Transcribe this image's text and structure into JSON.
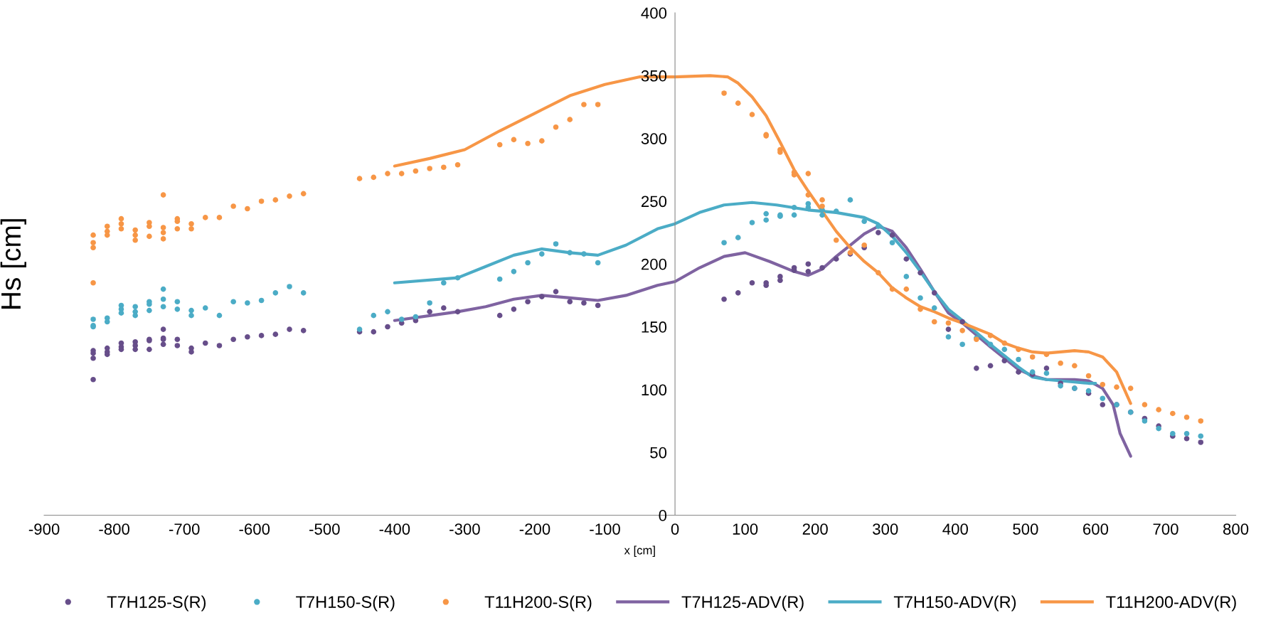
{
  "chart_data": {
    "type": "scatter",
    "xlabel": "x [cm]",
    "ylabel": "Hs [cm]",
    "xlim": [
      -900,
      800
    ],
    "xticks": [
      -900,
      -800,
      -700,
      -600,
      -500,
      -400,
      -300,
      -200,
      -100,
      0,
      100,
      200,
      300,
      400,
      500,
      600,
      700,
      800
    ],
    "ylim": [
      0,
      400
    ],
    "yticks": [
      0,
      50,
      100,
      150,
      200,
      250,
      300,
      350,
      400
    ],
    "grid": false,
    "legend": "bottom",
    "series": [
      {
        "name": "T7H125-S(R)",
        "type": "scatter",
        "marker": "circle",
        "color": "#674e8a",
        "x": [
          -830,
          -830,
          -830,
          -830,
          -810,
          -810,
          -810,
          -790,
          -790,
          -790,
          -770,
          -770,
          -770,
          -750,
          -750,
          -750,
          -730,
          -730,
          -730,
          -730,
          -710,
          -710,
          -690,
          -690,
          -670,
          -650,
          -630,
          -610,
          -590,
          -570,
          -550,
          -530,
          -450,
          -430,
          -410,
          -390,
          -370,
          -350,
          -330,
          -310,
          -250,
          -230,
          -210,
          -190,
          -170,
          -150,
          -130,
          -110,
          70,
          90,
          110,
          130,
          130,
          150,
          150,
          170,
          170,
          190,
          190,
          210,
          230,
          250,
          270,
          290,
          310,
          330,
          350,
          370,
          390,
          410,
          430,
          450,
          470,
          490,
          510,
          530,
          550,
          570,
          590,
          610,
          630,
          650,
          670,
          690,
          710,
          730,
          750
        ],
        "values": [
          131,
          129,
          125,
          108,
          133,
          130,
          128,
          137,
          134,
          132,
          138,
          135,
          132,
          140,
          139,
          132,
          148,
          141,
          140,
          136,
          140,
          135,
          133,
          130,
          137,
          135,
          140,
          142,
          143,
          144,
          148,
          147,
          146,
          146,
          150,
          153,
          155,
          162,
          165,
          162,
          159,
          164,
          170,
          174,
          178,
          170,
          169,
          167,
          172,
          177,
          185,
          185,
          183,
          190,
          187,
          197,
          195,
          200,
          194,
          197,
          204,
          208,
          213,
          225,
          223,
          204,
          193,
          177,
          148,
          154,
          117,
          119,
          123,
          114,
          112,
          117,
          105,
          101,
          97,
          88,
          88,
          82,
          77,
          71,
          63,
          61,
          58
        ]
      },
      {
        "name": "T7H150-S(R)",
        "type": "scatter",
        "marker": "circle",
        "color": "#4bacc6",
        "x": [
          -830,
          -830,
          -830,
          -810,
          -810,
          -790,
          -790,
          -790,
          -770,
          -770,
          -770,
          -750,
          -750,
          -750,
          -730,
          -730,
          -730,
          -710,
          -710,
          -690,
          -690,
          -670,
          -650,
          -630,
          -610,
          -590,
          -570,
          -550,
          -530,
          -450,
          -430,
          -410,
          -390,
          -370,
          -350,
          -330,
          -310,
          -250,
          -230,
          -210,
          -190,
          -170,
          -150,
          -130,
          -110,
          70,
          90,
          110,
          130,
          130,
          150,
          150,
          170,
          170,
          190,
          190,
          210,
          210,
          230,
          250,
          270,
          290,
          310,
          330,
          350,
          370,
          390,
          410,
          430,
          450,
          470,
          490,
          510,
          530,
          550,
          570,
          590,
          610,
          630,
          650,
          670,
          690,
          710,
          730,
          750
        ],
        "values": [
          156,
          151,
          150,
          157,
          154,
          167,
          164,
          161,
          166,
          162,
          159,
          170,
          168,
          163,
          180,
          172,
          166,
          170,
          164,
          163,
          159,
          165,
          159,
          170,
          169,
          171,
          177,
          182,
          177,
          148,
          159,
          162,
          156,
          158,
          169,
          185,
          189,
          188,
          194,
          201,
          208,
          216,
          209,
          208,
          201,
          217,
          221,
          233,
          240,
          235,
          239,
          238,
          245,
          239,
          248,
          245,
          243,
          239,
          242,
          251,
          234,
          230,
          217,
          190,
          173,
          165,
          142,
          136,
          141,
          136,
          132,
          124,
          114,
          113,
          103,
          101,
          99,
          93,
          88,
          82,
          75,
          69,
          65,
          65,
          63
        ]
      },
      {
        "name": "T11H200-S(R)",
        "type": "scatter",
        "marker": "circle",
        "color": "#f79646",
        "x": [
          -830,
          -830,
          -830,
          -830,
          -810,
          -810,
          -810,
          -790,
          -790,
          -790,
          -770,
          -770,
          -770,
          -750,
          -750,
          -750,
          -730,
          -730,
          -730,
          -730,
          -710,
          -710,
          -710,
          -690,
          -690,
          -670,
          -650,
          -630,
          -610,
          -590,
          -570,
          -550,
          -530,
          -450,
          -430,
          -410,
          -390,
          -370,
          -350,
          -330,
          -310,
          -250,
          -230,
          -210,
          -190,
          -170,
          -150,
          -130,
          -110,
          70,
          90,
          110,
          130,
          130,
          150,
          150,
          170,
          170,
          190,
          190,
          210,
          210,
          230,
          250,
          270,
          290,
          310,
          330,
          350,
          370,
          390,
          410,
          430,
          450,
          470,
          490,
          510,
          530,
          550,
          570,
          590,
          610,
          630,
          650,
          670,
          690,
          710,
          730,
          750
        ],
        "values": [
          223,
          217,
          213,
          185,
          230,
          226,
          223,
          236,
          232,
          228,
          227,
          223,
          219,
          233,
          230,
          222,
          255,
          229,
          225,
          220,
          236,
          234,
          228,
          232,
          228,
          237,
          237,
          246,
          244,
          250,
          251,
          254,
          256,
          268,
          269,
          272,
          272,
          274,
          276,
          277,
          279,
          295,
          299,
          296,
          298,
          309,
          315,
          327,
          327,
          336,
          328,
          319,
          303,
          302,
          291,
          289,
          273,
          271,
          272,
          255,
          251,
          246,
          219,
          209,
          215,
          193,
          180,
          180,
          164,
          154,
          153,
          147,
          140,
          143,
          137,
          132,
          126,
          128,
          121,
          119,
          111,
          104,
          102,
          101,
          88,
          84,
          81,
          78,
          75
        ]
      },
      {
        "name": "T7H125-ADV(R)",
        "type": "line",
        "marker": "none",
        "line_style": "solid",
        "color": "#7f63a1",
        "x": [
          -400,
          -310,
          -270,
          -230,
          -190,
          -150,
          -110,
          -70,
          -25,
          0,
          35,
          70,
          100,
          135,
          170,
          190,
          210,
          230,
          250,
          270,
          290,
          310,
          330,
          350,
          370,
          390,
          410,
          450,
          490,
          510,
          530,
          550,
          570,
          590,
          610,
          625,
          635,
          650
        ],
        "values": [
          155,
          162,
          166,
          172,
          175,
          173,
          171,
          175,
          183,
          186,
          197,
          206,
          209,
          202,
          194,
          191,
          196,
          206,
          215,
          224,
          230,
          226,
          213,
          196,
          178,
          161,
          153,
          134,
          116,
          111,
          108,
          108,
          108,
          107,
          101,
          88,
          65,
          47
        ]
      },
      {
        "name": "T7H150-ADV(R)",
        "type": "line",
        "marker": "none",
        "line_style": "solid",
        "color": "#4bacc6",
        "x": [
          -400,
          -310,
          -270,
          -230,
          -190,
          -150,
          -110,
          -70,
          -25,
          0,
          35,
          70,
          110,
          145,
          190,
          230,
          270,
          290,
          310,
          330,
          350,
          370,
          390,
          410,
          450,
          490,
          510,
          530,
          550,
          570,
          590,
          600
        ],
        "values": [
          185,
          189,
          198,
          207,
          212,
          209,
          207,
          215,
          228,
          232,
          241,
          247,
          249,
          247,
          243,
          241,
          237,
          232,
          222,
          209,
          194,
          178,
          164,
          155,
          136,
          118,
          110,
          108,
          107,
          106,
          105,
          105
        ]
      },
      {
        "name": "T11H200-ADV(R)",
        "type": "line",
        "marker": "none",
        "line_style": "solid",
        "color": "#f79646",
        "x": [
          -400,
          -350,
          -300,
          -250,
          -200,
          -150,
          -100,
          -50,
          0,
          50,
          75,
          90,
          110,
          130,
          150,
          170,
          190,
          210,
          230,
          250,
          270,
          290,
          310,
          330,
          350,
          370,
          390,
          410,
          450,
          470,
          490,
          510,
          530,
          550,
          570,
          590,
          610,
          630,
          650
        ],
        "values": [
          278,
          284,
          291,
          306,
          320,
          334,
          343,
          349,
          349,
          350,
          349,
          344,
          333,
          318,
          297,
          275,
          258,
          242,
          226,
          213,
          202,
          193,
          181,
          173,
          166,
          162,
          157,
          153,
          144,
          137,
          133,
          130,
          129,
          130,
          131,
          130,
          126,
          114,
          89
        ]
      }
    ]
  }
}
